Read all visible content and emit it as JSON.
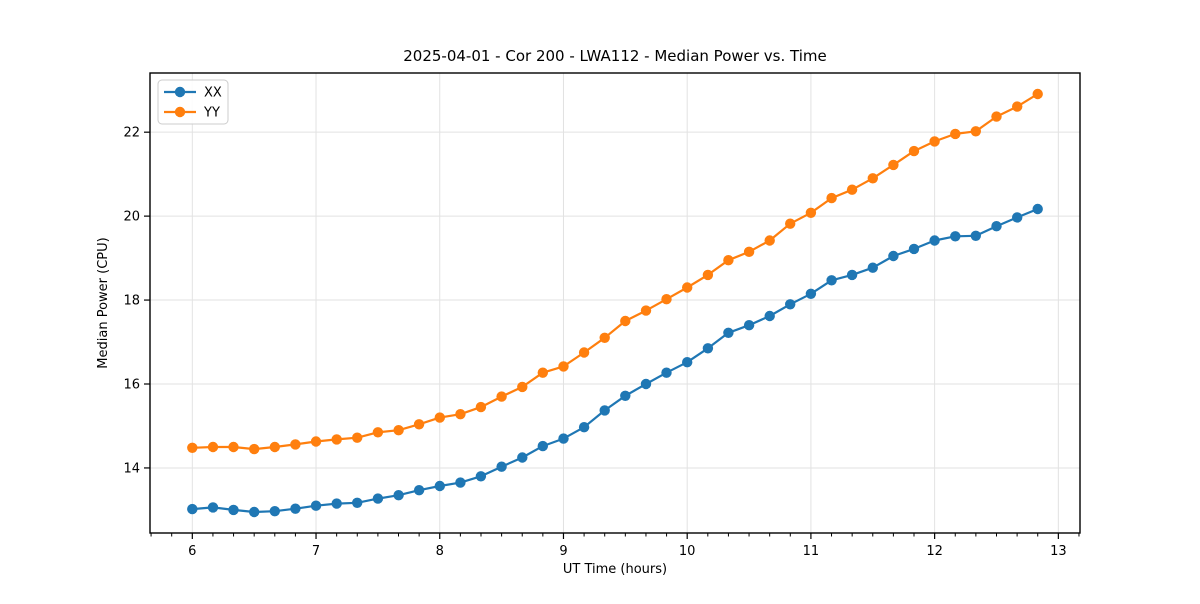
{
  "chart_data": {
    "type": "line",
    "title": "2025-04-01 - Cor 200 - LWA112 - Median Power vs. Time",
    "xlabel": "UT Time (hours)",
    "ylabel": "Median Power (CPU)",
    "xlim": [
      5.658,
      13.175
    ],
    "ylim": [
      12.45,
      23.41
    ],
    "x_ticks": [
      6,
      7,
      8,
      9,
      10,
      11,
      12,
      13
    ],
    "y_ticks": [
      14,
      16,
      18,
      20,
      22
    ],
    "x_minor_tick_step_hours": 0.1667,
    "grid": "major",
    "grid_color": "#e2e2e2",
    "background_color": "#ffffff",
    "legend": {
      "position": "upper-left",
      "entries": [
        "XX",
        "YY"
      ]
    },
    "x": [
      6.0,
      6.167,
      6.333,
      6.5,
      6.667,
      6.833,
      7.0,
      7.167,
      7.333,
      7.5,
      7.667,
      7.833,
      8.0,
      8.167,
      8.333,
      8.5,
      8.667,
      8.833,
      9.0,
      9.167,
      9.333,
      9.5,
      9.667,
      9.833,
      10.0,
      10.167,
      10.333,
      10.5,
      10.667,
      10.833,
      11.0,
      11.167,
      11.333,
      11.5,
      11.667,
      11.833,
      12.0,
      12.167,
      12.333,
      12.5,
      12.667,
      12.833
    ],
    "series": [
      {
        "name": "XX",
        "color": "#1f77b4",
        "values": [
          13.02,
          13.06,
          13.0,
          12.95,
          12.97,
          13.03,
          13.1,
          13.15,
          13.17,
          13.27,
          13.35,
          13.47,
          13.57,
          13.65,
          13.8,
          14.03,
          14.25,
          14.52,
          14.7,
          14.97,
          15.37,
          15.72,
          16.0,
          16.27,
          16.52,
          16.85,
          17.22,
          17.4,
          17.62,
          17.9,
          18.15,
          18.47,
          18.6,
          18.77,
          19.05,
          19.22,
          19.42,
          19.52,
          19.53,
          19.76,
          19.97,
          20.17
        ]
      },
      {
        "name": "YY",
        "color": "#ff7f0e",
        "values": [
          14.48,
          14.5,
          14.5,
          14.45,
          14.5,
          14.56,
          14.63,
          14.68,
          14.72,
          14.85,
          14.9,
          15.04,
          15.2,
          15.28,
          15.45,
          15.7,
          15.93,
          16.27,
          16.42,
          16.75,
          17.1,
          17.5,
          17.75,
          18.02,
          18.3,
          18.6,
          18.95,
          19.15,
          19.42,
          19.82,
          20.08,
          20.43,
          20.63,
          20.9,
          21.22,
          21.55,
          21.78,
          21.96,
          22.02,
          22.37,
          22.61,
          22.91
        ]
      }
    ]
  }
}
